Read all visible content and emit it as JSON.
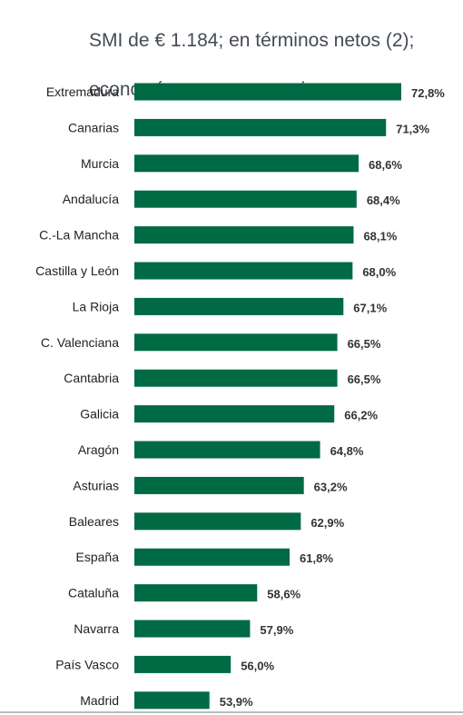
{
  "title_line1": "SMI de € 1.184; en términos netos (2);",
  "title_line2": "economía no agropecuaria",
  "colors": {
    "bar": "#006a45",
    "category_text": "#222222",
    "value_text": "#333333",
    "title": "#444b55"
  },
  "chart_data": {
    "type": "bar",
    "orientation": "horizontal",
    "title": "SMI de € 1.184; en términos netos (2); economía no agropecuaria",
    "categories": [
      "Extremadura",
      "Canarias",
      "Murcia",
      "Andalucía",
      "C.-La Mancha",
      "Castilla y León",
      "La Rioja",
      "C. Valenciana",
      "Cantabria",
      "Galicia",
      "Aragón",
      "Asturias",
      "Baleares",
      "España",
      "Cataluña",
      "Navarra",
      "País Vasco",
      "Madrid"
    ],
    "values": [
      72.8,
      71.3,
      68.6,
      68.4,
      68.1,
      68.0,
      67.1,
      66.5,
      66.5,
      66.2,
      64.8,
      63.2,
      62.9,
      61.8,
      58.6,
      57.9,
      56.0,
      53.9
    ],
    "data_labels": [
      "72,8%",
      "71,3%",
      "68,6%",
      "68,4%",
      "68,1%",
      "68,0%",
      "67,1%",
      "66,5%",
      "66,5%",
      "66,2%",
      "64,8%",
      "63,2%",
      "62,9%",
      "61,8%",
      "58,6%",
      "57,9%",
      "56,0%",
      "53,9%"
    ],
    "xlim": [
      46.5,
      72.8
    ],
    "grid": false,
    "legend": "none"
  }
}
